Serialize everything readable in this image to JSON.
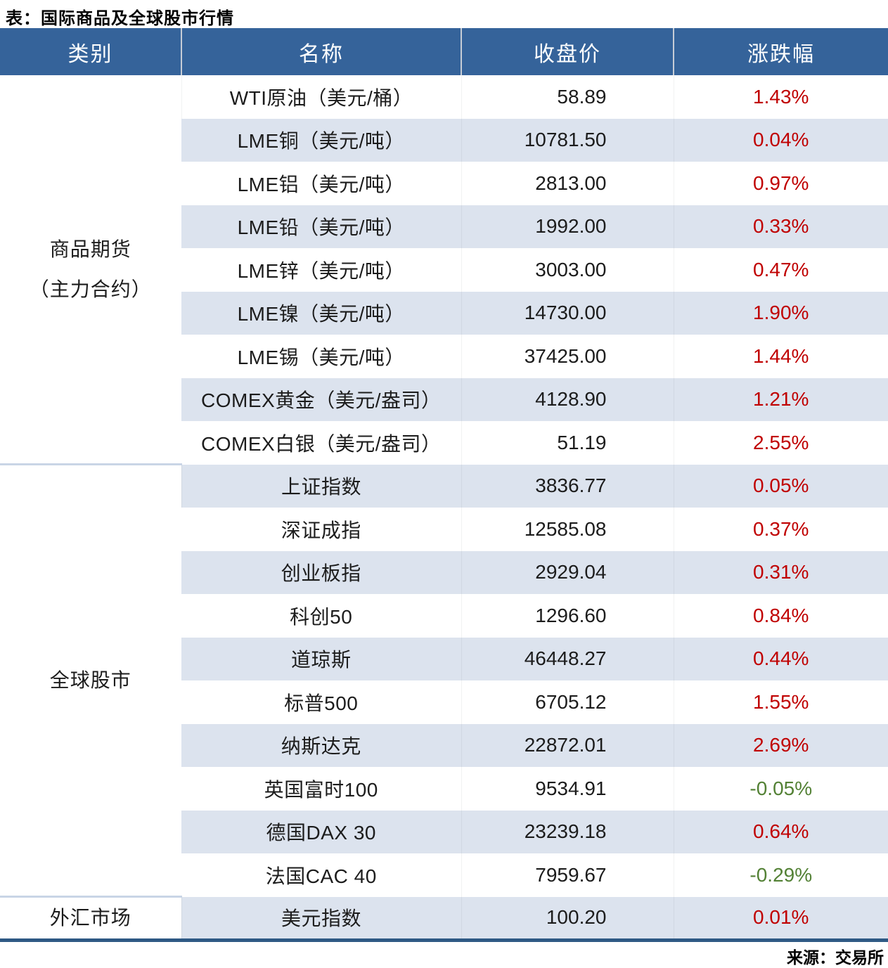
{
  "colors": {
    "header_bg": "#35639A",
    "stripe": "#DCE3EE",
    "up_red": "#C00000",
    "down_green": "#538135",
    "bottom_border": "#2E5984",
    "section_line": "#C9D5E6"
  },
  "chart_data": {
    "type": "table",
    "title": "表：国际商品及全球股市行情",
    "source": "来源：交易所",
    "columns": [
      "类别",
      "名称",
      "收盘价",
      "涨跌幅"
    ],
    "sections": [
      {
        "category": "商品期货（主力合约）",
        "category_lines": [
          "商品期货",
          "（主力合约）"
        ],
        "rows": [
          {
            "name": "WTI原油（美元/桶）",
            "close": "58.89",
            "change": "1.43%",
            "direction": "up"
          },
          {
            "name": "LME铜（美元/吨）",
            "close": "10781.50",
            "change": "0.04%",
            "direction": "up"
          },
          {
            "name": "LME铝（美元/吨）",
            "close": "2813.00",
            "change": "0.97%",
            "direction": "up"
          },
          {
            "name": "LME铅（美元/吨）",
            "close": "1992.00",
            "change": "0.33%",
            "direction": "up"
          },
          {
            "name": "LME锌（美元/吨）",
            "close": "3003.00",
            "change": "0.47%",
            "direction": "up"
          },
          {
            "name": "LME镍（美元/吨）",
            "close": "14730.00",
            "change": "1.90%",
            "direction": "up"
          },
          {
            "name": "LME锡（美元/吨）",
            "close": "37425.00",
            "change": "1.44%",
            "direction": "up"
          },
          {
            "name": "COMEX黄金（美元/盎司）",
            "close": "4128.90",
            "change": "1.21%",
            "direction": "up"
          },
          {
            "name": "COMEX白银（美元/盎司）",
            "close": "51.19",
            "change": "2.55%",
            "direction": "up"
          }
        ]
      },
      {
        "category": "全球股市",
        "category_lines": [
          "全球股市"
        ],
        "rows": [
          {
            "name": "上证指数",
            "close": "3836.77",
            "change": "0.05%",
            "direction": "up"
          },
          {
            "name": "深证成指",
            "close": "12585.08",
            "change": "0.37%",
            "direction": "up"
          },
          {
            "name": "创业板指",
            "close": "2929.04",
            "change": "0.31%",
            "direction": "up"
          },
          {
            "name": "科创50",
            "close": "1296.60",
            "change": "0.84%",
            "direction": "up"
          },
          {
            "name": "道琼斯",
            "close": "46448.27",
            "change": "0.44%",
            "direction": "up"
          },
          {
            "name": "标普500",
            "close": "6705.12",
            "change": "1.55%",
            "direction": "up"
          },
          {
            "name": "纳斯达克",
            "close": "22872.01",
            "change": "2.69%",
            "direction": "up"
          },
          {
            "name": "英国富时100",
            "close": "9534.91",
            "change": "-0.05%",
            "direction": "down"
          },
          {
            "name": "德国DAX 30",
            "close": "23239.18",
            "change": "0.64%",
            "direction": "up"
          },
          {
            "name": "法国CAC 40",
            "close": "7959.67",
            "change": "-0.29%",
            "direction": "down"
          }
        ]
      },
      {
        "category": "外汇市场",
        "category_lines": [
          "外汇市场"
        ],
        "rows": [
          {
            "name": "美元指数",
            "close": "100.20",
            "change": "0.01%",
            "direction": "up"
          }
        ]
      }
    ]
  }
}
